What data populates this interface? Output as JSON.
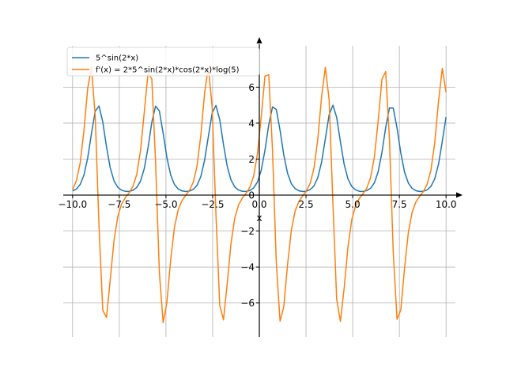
{
  "chart_data": {
    "type": "line",
    "title": "",
    "xlabel": "x",
    "ylabel": "",
    "xlim": [
      -10.5,
      10.5
    ],
    "ylim": [
      -7.9,
      8.3
    ],
    "grid": true,
    "legend_position": "top-left",
    "x_ticks": [
      -10.0,
      -7.5,
      -5.0,
      -2.5,
      0.0,
      2.5,
      5.0,
      7.5,
      10.0
    ],
    "x_tick_labels": [
      "−10.0",
      "−7.5",
      "−5.0",
      "−2.5",
      "0.0",
      "2.5",
      "5.0",
      "7.5",
      "10.0"
    ],
    "y_ticks": [
      -6,
      -4,
      -2,
      0,
      2,
      4,
      6
    ],
    "y_tick_labels": [
      "−6",
      "−4",
      "−2",
      "0",
      "2",
      "4",
      "6"
    ],
    "series": [
      {
        "name": "5^sin(2*x)",
        "color": "#1f77b4",
        "expression": "5^sin(2x)",
        "x_range": [
          -10,
          10
        ],
        "samples": 100
      },
      {
        "name": "f'(x) = 2*5^sin(2*x)*cos(2*x)*log(5)",
        "color": "#ff7f0e",
        "expression": "2*5^sin(2x)*cos(2x)*ln(5)",
        "x_range": [
          -10,
          10
        ],
        "samples": 100
      }
    ]
  }
}
